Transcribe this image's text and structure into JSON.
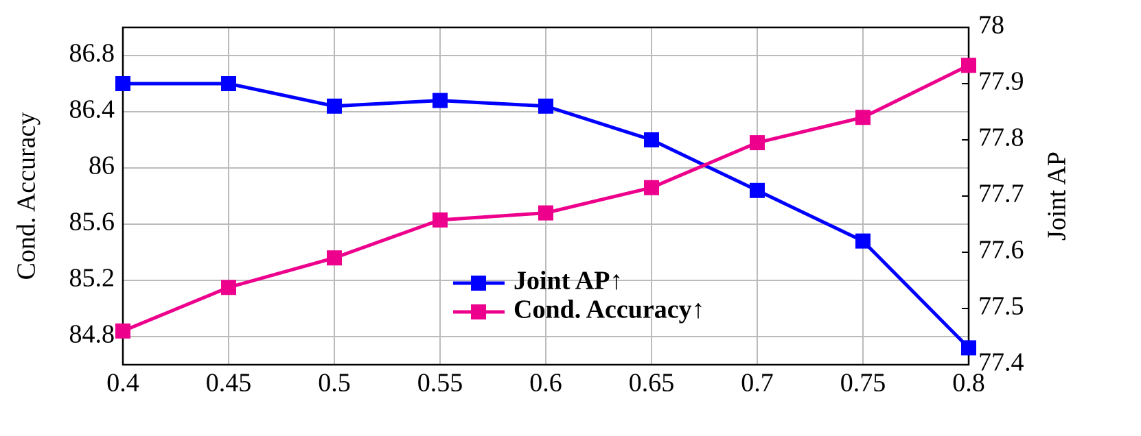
{
  "chart_data": {
    "type": "line",
    "x": [
      0.4,
      0.45,
      0.5,
      0.55,
      0.6,
      0.65,
      0.7,
      0.75,
      0.8
    ],
    "xlim": [
      0.4,
      0.8
    ],
    "xticks": [
      0.4,
      0.45,
      0.5,
      0.55,
      0.6,
      0.65,
      0.7,
      0.75,
      0.8
    ],
    "ylim": [
      84.6,
      87.0
    ],
    "yticks": [
      84.8,
      85.2,
      85.6,
      86,
      86.4,
      86.8
    ],
    "y2lim": [
      77.4,
      78
    ],
    "y2ticks": [
      77.4,
      77.5,
      77.6,
      77.7,
      77.8,
      77.9,
      78
    ],
    "ylabel": "Cond. Accuracy",
    "y2label": "Joint AP",
    "grid": true,
    "legend": "lower center",
    "series": [
      {
        "name": "Joint AP↑",
        "color": "#0000ff",
        "axis": "y2",
        "values": [
          77.9,
          77.9,
          77.86,
          77.87,
          77.86,
          77.8,
          77.71,
          77.62,
          77.43
        ]
      },
      {
        "name": "Cond. Accuracy↑",
        "color": "#ec008c",
        "values": [
          84.84,
          85.15,
          85.36,
          85.63,
          85.68,
          85.86,
          86.18,
          86.36,
          86.73
        ]
      }
    ]
  }
}
